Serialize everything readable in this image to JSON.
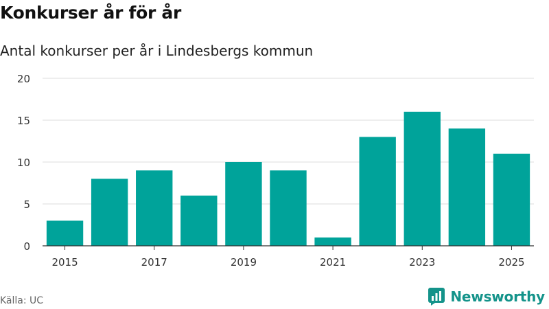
{
  "header": {
    "title": "Konkurser år för år",
    "subtitle": "Antal konkurser per år i Lindesbergs kommun"
  },
  "footer": {
    "source": "Källa: UC",
    "brand": "Newsworthy"
  },
  "colors": {
    "bar": "#00a39a",
    "grid": "#dddddd",
    "axis": "#333333",
    "brand": "#14938a"
  },
  "chart_data": {
    "type": "bar",
    "title": "Konkurser år för år",
    "subtitle": "Antal konkurser per år i Lindesbergs kommun",
    "xlabel": "",
    "ylabel": "",
    "categories": [
      "2015",
      "2016",
      "2017",
      "2018",
      "2019",
      "2020",
      "2021",
      "2022",
      "2023",
      "2024",
      "2025"
    ],
    "values": [
      3,
      8,
      9,
      6,
      10,
      9,
      1,
      13,
      16,
      14,
      11
    ],
    "ylim": [
      0,
      20
    ],
    "yticks": [
      0,
      5,
      10,
      15,
      20
    ],
    "xticks": [
      "2015",
      "2017",
      "2019",
      "2021",
      "2023",
      "2025"
    ],
    "grid": true
  }
}
